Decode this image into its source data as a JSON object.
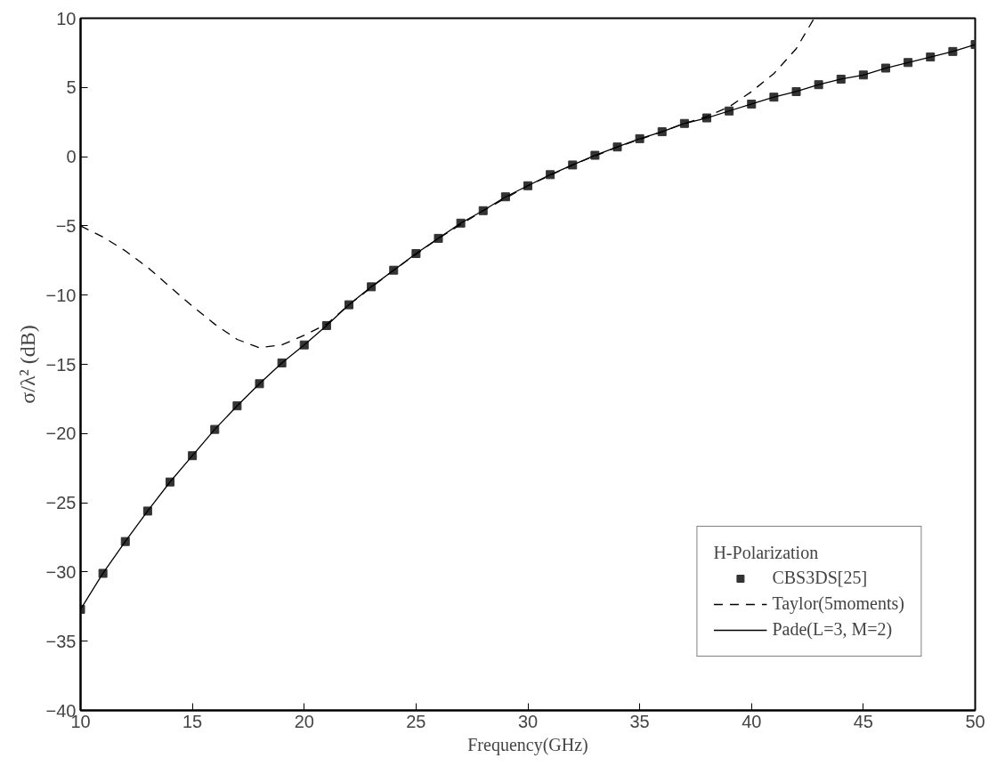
{
  "chart_data": {
    "type": "line",
    "xlabel": "Frequency(GHz)",
    "ylabel": "σ/λ² (dB)",
    "legend_title": "H-Polarization",
    "xlim": [
      10,
      50
    ],
    "ylim": [
      -40,
      10
    ],
    "xticks": [
      10,
      15,
      20,
      25,
      30,
      35,
      40,
      45,
      50
    ],
    "yticks": [
      -40,
      -35,
      -30,
      -25,
      -20,
      -15,
      -10,
      -5,
      0,
      5,
      10
    ],
    "grid": false,
    "legend": "bottom right",
    "series": [
      {
        "name": "CBS3DS[25]",
        "type": "scatter",
        "marker": "square",
        "color": "#333333",
        "x": [
          10,
          11,
          12,
          13,
          14,
          15,
          16,
          17,
          18,
          19,
          20,
          21,
          22,
          23,
          24,
          25,
          26,
          27,
          28,
          29,
          30,
          31,
          32,
          33,
          34,
          35,
          36,
          37,
          38,
          39,
          40,
          41,
          42,
          43,
          44,
          45,
          46,
          47,
          48,
          49,
          50
        ],
        "values": [
          -32.7,
          -30.1,
          -27.8,
          -25.6,
          -23.5,
          -21.6,
          -19.7,
          -18.0,
          -16.4,
          -14.9,
          -13.6,
          -12.2,
          -10.7,
          -9.4,
          -8.2,
          -7.0,
          -5.9,
          -4.8,
          -3.9,
          -2.9,
          -2.1,
          -1.3,
          -0.6,
          0.1,
          0.7,
          1.3,
          1.8,
          2.4,
          2.8,
          3.3,
          3.8,
          4.3,
          4.7,
          5.2,
          5.6,
          5.9,
          6.4,
          6.8,
          7.2,
          7.6,
          8.1
        ]
      },
      {
        "name": "Taylor(5moments)",
        "line_style": "dashed",
        "color": "#000000",
        "x": [
          10,
          11,
          12,
          13,
          14,
          15,
          16,
          17,
          18,
          19,
          20,
          21,
          22,
          24,
          26,
          28,
          30,
          32,
          34,
          36,
          37,
          38,
          39,
          40,
          41,
          42,
          42.8
        ],
        "values": [
          -5.0,
          -5.8,
          -6.8,
          -8.0,
          -9.4,
          -10.8,
          -12.1,
          -13.2,
          -13.8,
          -13.6,
          -12.9,
          -12.1,
          -10.7,
          -8.2,
          -5.9,
          -3.9,
          -2.1,
          -0.6,
          0.7,
          1.8,
          2.4,
          2.9,
          3.6,
          4.7,
          6.0,
          7.8,
          10.0
        ]
      },
      {
        "name": "Pade(L=3, M=2)",
        "line_style": "solid",
        "color": "#000000",
        "x": [
          10,
          11,
          12,
          13,
          14,
          15,
          16,
          17,
          18,
          19,
          20,
          21,
          22,
          23,
          24,
          25,
          26,
          27,
          28,
          29,
          30,
          31,
          32,
          33,
          34,
          35,
          36,
          37,
          38,
          39,
          40,
          41,
          42,
          43,
          44,
          45,
          46,
          47,
          48,
          49,
          50
        ],
        "values": [
          -32.7,
          -30.1,
          -27.8,
          -25.6,
          -23.5,
          -21.6,
          -19.7,
          -18.0,
          -16.4,
          -14.9,
          -13.6,
          -12.2,
          -10.7,
          -9.4,
          -8.2,
          -7.0,
          -5.9,
          -4.8,
          -3.9,
          -2.9,
          -2.1,
          -1.3,
          -0.6,
          0.1,
          0.7,
          1.3,
          1.8,
          2.4,
          2.8,
          3.3,
          3.8,
          4.3,
          4.7,
          5.2,
          5.6,
          5.9,
          6.4,
          6.8,
          7.2,
          7.6,
          8.1
        ]
      }
    ]
  }
}
